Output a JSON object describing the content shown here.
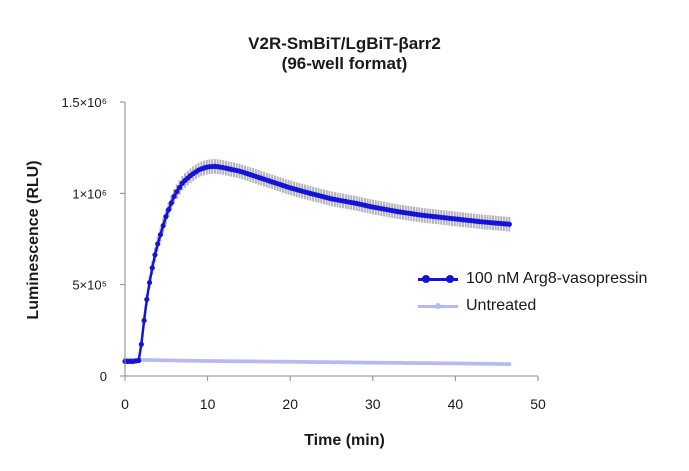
{
  "chart_data": {
    "type": "line",
    "title_line1": "V2R-SmBiT/LgBiT-βarr2",
    "title_line2": "(96-well format)",
    "xlabel": "Time (min)",
    "ylabel": "Luminescence (RLU)",
    "xlim": [
      0,
      50
    ],
    "ylim": [
      0,
      1500000
    ],
    "x_ticks": [
      "0",
      "10",
      "20",
      "30",
      "40",
      "50"
    ],
    "x_tick_values": [
      0,
      10,
      20,
      30,
      40,
      50
    ],
    "y_ticks": [
      "0",
      "5×10⁵",
      "1×10⁶",
      "1.5×10⁶"
    ],
    "y_tick_values": [
      0,
      500000,
      1000000,
      1500000
    ],
    "grid": false,
    "legend_position": "right",
    "series": [
      {
        "name": "100 nM Arg8-vasopressin",
        "color": "#1414d9",
        "error_color": "#b4b4bc",
        "x": [
          0,
          1,
          1.7,
          2,
          2.5,
          3,
          3.5,
          4,
          5,
          6,
          7,
          8,
          9,
          10,
          11,
          12,
          14,
          16,
          18,
          20,
          22,
          25,
          28,
          30,
          33,
          36,
          40,
          43,
          46.7
        ],
        "y": [
          80000,
          80000,
          85000,
          180000,
          380000,
          520000,
          640000,
          730000,
          880000,
          990000,
          1060000,
          1100000,
          1130000,
          1145000,
          1148000,
          1140000,
          1120000,
          1090000,
          1060000,
          1030000,
          1005000,
          970000,
          945000,
          925000,
          900000,
          880000,
          860000,
          845000,
          830000
        ],
        "err": [
          10000,
          10000,
          10000,
          20000,
          30000,
          35000,
          40000,
          40000,
          40000,
          40000,
          40000,
          40000,
          40000,
          40000,
          40000,
          40000,
          40000,
          40000,
          40000,
          40000,
          40000,
          40000,
          40000,
          40000,
          40000,
          40000,
          40000,
          40000,
          40000
        ]
      },
      {
        "name": "Untreated",
        "color": "#b9b9f2",
        "x": [
          0,
          2,
          10,
          20,
          30,
          40,
          46.7
        ],
        "y": [
          90000,
          88000,
          82000,
          78000,
          73000,
          69000,
          65000
        ]
      }
    ]
  }
}
